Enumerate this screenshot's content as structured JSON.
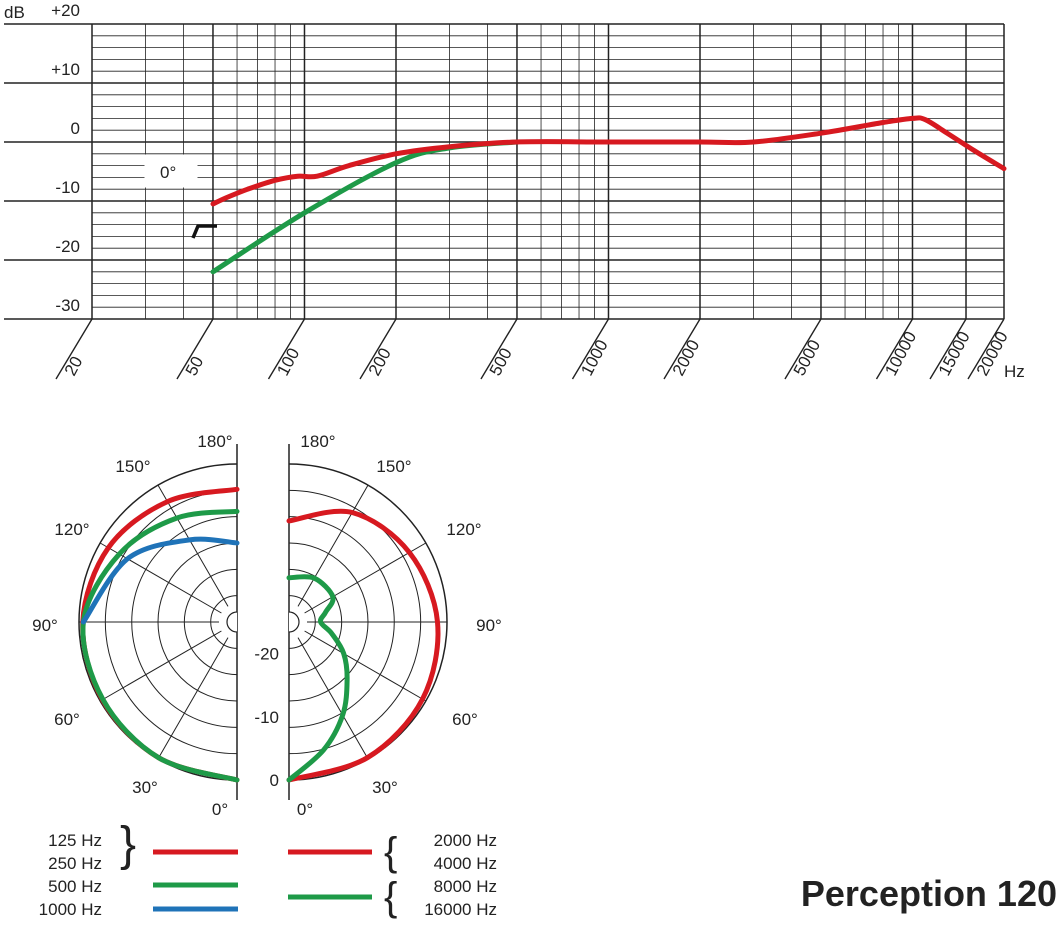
{
  "product_name": "Perception 120",
  "colors": {
    "red": "#d71920",
    "green": "#1e9a48",
    "blue": "#1f73b8",
    "grid": "#222222"
  },
  "chart_data": [
    {
      "type": "line",
      "ylabel": "dB",
      "xlabel": "Hz",
      "x_scale": "log",
      "xlim": [
        20,
        20000
      ],
      "ylim": [
        -30,
        20
      ],
      "y_ticks": [
        20,
        10,
        0,
        -10,
        -20,
        -30
      ],
      "y_tick_labels": [
        "+20",
        "+10",
        "0",
        "-10",
        "-20",
        "-30"
      ],
      "x_ticks": [
        20,
        50,
        100,
        200,
        500,
        1000,
        2000,
        5000,
        10000,
        15000,
        20000
      ],
      "x_tick_labels": [
        "20",
        "50",
        "100",
        "200",
        "500",
        "1000",
        "2000",
        "5000",
        "10000",
        "15000",
        "20000"
      ],
      "annotation": "0°",
      "grid": true,
      "series": [
        {
          "color": "red",
          "style": "frequency response",
          "x": [
            50,
            55,
            65,
            80,
            95,
            110,
            140,
            200,
            300,
            500,
            1000,
            2000,
            3000,
            5000,
            8000,
            10000,
            11000,
            13000,
            16000,
            20000
          ],
          "y": [
            -10.5,
            -9.5,
            -8,
            -6.5,
            -5.8,
            -5.8,
            -4,
            -2,
            -0.8,
            0,
            0,
            0,
            0,
            1.5,
            3.3,
            4,
            3.8,
            1.5,
            -1.5,
            -4.5
          ]
        },
        {
          "color": "green",
          "style": "low-cut filter",
          "x": [
            50,
            100,
            200,
            300,
            500
          ],
          "y": [
            -22,
            -12,
            -3.5,
            -1,
            0
          ]
        }
      ]
    },
    {
      "type": "polar",
      "angle_labels_left": [
        "180°",
        "150°",
        "120°",
        "90°",
        "60°",
        "30°",
        "0°"
      ],
      "angle_labels_right": [
        "180°",
        "150°",
        "120°",
        "90°",
        "60°",
        "30°",
        "0°"
      ],
      "angles_deg": [
        180,
        150,
        120,
        90,
        60,
        30,
        0
      ],
      "radial_ticks": [
        -20,
        -10,
        0
      ],
      "radial_range_db": [
        -25,
        0
      ],
      "series": [
        {
          "side": "left",
          "color": "red",
          "legend": [
            "125 Hz",
            "250 Hz"
          ],
          "angles": [
            0,
            30,
            60,
            90,
            120,
            150,
            180
          ],
          "db": [
            0,
            -0.2,
            -0.4,
            -0.6,
            -1.5,
            -3,
            -4
          ]
        },
        {
          "side": "left",
          "color": "green",
          "legend": [
            "500 Hz"
          ],
          "angles": [
            0,
            30,
            60,
            90,
            120,
            150,
            180
          ],
          "db": [
            0,
            -0.2,
            -0.5,
            -0.7,
            -3.5,
            -6,
            -7.5
          ]
        },
        {
          "side": "left",
          "color": "blue",
          "legend": [
            "1000 Hz"
          ],
          "angles": [
            90,
            120,
            150,
            180
          ],
          "db": [
            -0.7,
            -5,
            -10,
            -12.5
          ]
        },
        {
          "side": "right",
          "color": "red",
          "legend": [
            "2000 Hz",
            "4000 Hz"
          ],
          "angles": [
            0,
            30,
            60,
            90,
            120,
            150,
            180
          ],
          "db": [
            0,
            -0.2,
            -0.6,
            -1.5,
            -3,
            -5,
            -9
          ]
        },
        {
          "side": "right",
          "color": "green",
          "legend": [
            "8000 Hz",
            "16000 Hz"
          ],
          "angles": [
            0,
            15,
            30,
            45,
            60,
            75,
            90,
            105,
            120,
            150,
            180
          ],
          "db": [
            0,
            -4,
            -8,
            -12,
            -15,
            -18,
            -20,
            -19,
            -17,
            -17,
            -18
          ]
        }
      ]
    }
  ]
}
